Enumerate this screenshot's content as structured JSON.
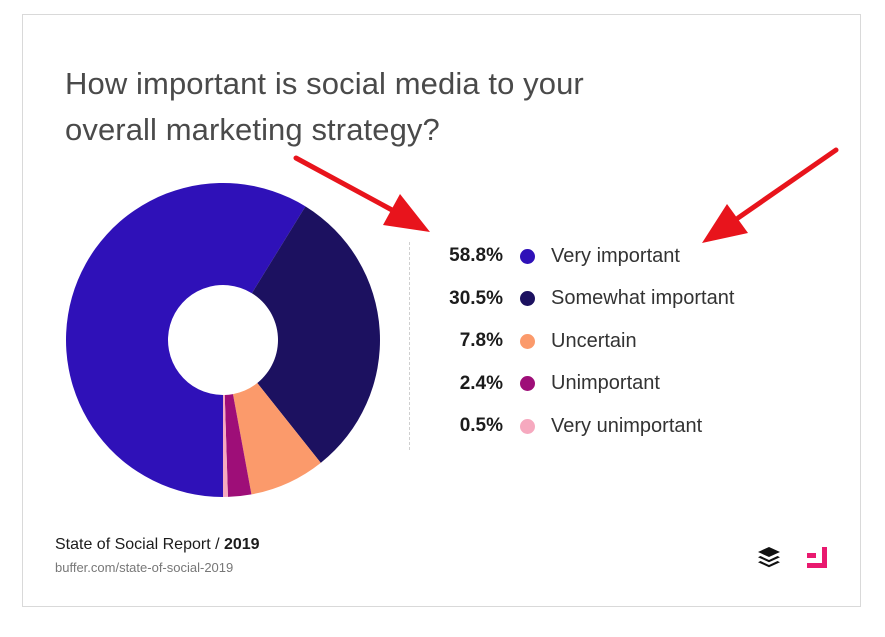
{
  "title_lines": [
    "How important is social media to your",
    "overall marketing strategy?"
  ],
  "chart_data": {
    "type": "pie",
    "donut": true,
    "title": "How important is social media to your overall marketing strategy?",
    "categories": [
      "Very important",
      "Somewhat important",
      "Uncertain",
      "Unimportant",
      "Very unimportant"
    ],
    "values": [
      58.8,
      30.5,
      7.8,
      2.4,
      0.5
    ],
    "labels": [
      "58.8%",
      "30.5%",
      "7.8%",
      "2.4%",
      "0.5%"
    ],
    "colors": [
      "#2f11b8",
      "#1c1160",
      "#fb9a6b",
      "#9e0e78",
      "#f6a9bf"
    ],
    "legend_position": "right",
    "start_angle_deg": 90,
    "direction": "clockwise"
  },
  "footer": {
    "report": "State of Social Report / ",
    "year": "2019",
    "url": "buffer.com/state-of-social-2019"
  },
  "logos": {
    "left": "buffer-layers-logo",
    "right": "pink-bracket-logo",
    "right_color": "#e9196f"
  },
  "annotations": {
    "arrow_color": "#e8141c"
  }
}
